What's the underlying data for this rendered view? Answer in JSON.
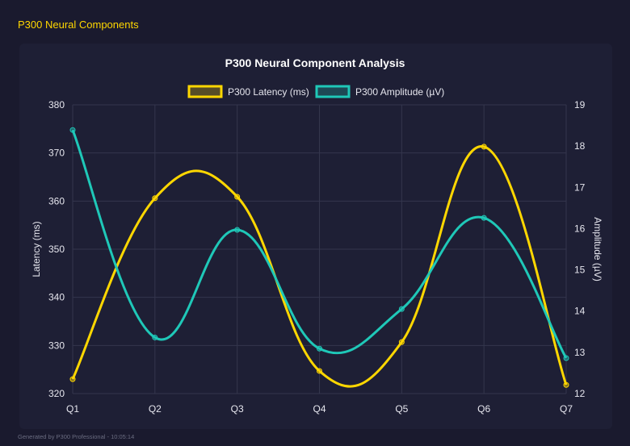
{
  "header": {
    "title": "P300 Neural Components"
  },
  "footer": {
    "text": "Generated by P300 Professional - 10:05:14"
  },
  "chart_data": {
    "type": "line",
    "title": "P300 Neural Component Analysis",
    "categories": [
      "Q1",
      "Q2",
      "Q3",
      "Q4",
      "Q5",
      "Q6",
      "Q7"
    ],
    "series": [
      {
        "name": "P300 Latency (ms)",
        "axis": "left",
        "color": "#ffd700",
        "values": [
          323.0,
          360.6,
          360.9,
          324.7,
          330.7,
          371.3,
          321.8
        ]
      },
      {
        "name": "P300 Amplitude (µV)",
        "axis": "right",
        "color": "#1fc8b8",
        "values": [
          18.39,
          13.36,
          15.97,
          13.09,
          14.05,
          16.26,
          12.86
        ]
      }
    ],
    "y_left": {
      "label": "Latency (ms)",
      "range": [
        320,
        380
      ],
      "ticks": [
        "320",
        "330",
        "340",
        "350",
        "360",
        "370",
        "380"
      ]
    },
    "y_right": {
      "label": "Amplitude (µV)",
      "range": [
        12,
        19
      ],
      "ticks": [
        "12",
        "13",
        "14",
        "15",
        "16",
        "17",
        "18",
        "19"
      ]
    },
    "grid": true,
    "legend": "top"
  }
}
